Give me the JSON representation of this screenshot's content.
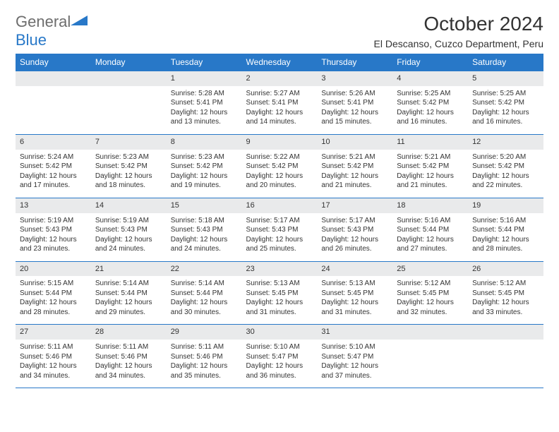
{
  "logo": {
    "general": "General",
    "blue": "Blue"
  },
  "header": {
    "title": "October 2024",
    "location": "El Descanso, Cuzco Department, Peru"
  },
  "colors": {
    "brand": "#2878c8",
    "dayhead_bg": "#e9eaeb",
    "text": "#333333",
    "logo_gray": "#6d6d6d"
  },
  "weekdays": [
    "Sunday",
    "Monday",
    "Tuesday",
    "Wednesday",
    "Thursday",
    "Friday",
    "Saturday"
  ],
  "weeks": [
    [
      null,
      null,
      {
        "n": "1",
        "sr": "Sunrise: 5:28 AM",
        "ss": "Sunset: 5:41 PM",
        "dl": "Daylight: 12 hours and 13 minutes."
      },
      {
        "n": "2",
        "sr": "Sunrise: 5:27 AM",
        "ss": "Sunset: 5:41 PM",
        "dl": "Daylight: 12 hours and 14 minutes."
      },
      {
        "n": "3",
        "sr": "Sunrise: 5:26 AM",
        "ss": "Sunset: 5:41 PM",
        "dl": "Daylight: 12 hours and 15 minutes."
      },
      {
        "n": "4",
        "sr": "Sunrise: 5:25 AM",
        "ss": "Sunset: 5:42 PM",
        "dl": "Daylight: 12 hours and 16 minutes."
      },
      {
        "n": "5",
        "sr": "Sunrise: 5:25 AM",
        "ss": "Sunset: 5:42 PM",
        "dl": "Daylight: 12 hours and 16 minutes."
      }
    ],
    [
      {
        "n": "6",
        "sr": "Sunrise: 5:24 AM",
        "ss": "Sunset: 5:42 PM",
        "dl": "Daylight: 12 hours and 17 minutes."
      },
      {
        "n": "7",
        "sr": "Sunrise: 5:23 AM",
        "ss": "Sunset: 5:42 PM",
        "dl": "Daylight: 12 hours and 18 minutes."
      },
      {
        "n": "8",
        "sr": "Sunrise: 5:23 AM",
        "ss": "Sunset: 5:42 PM",
        "dl": "Daylight: 12 hours and 19 minutes."
      },
      {
        "n": "9",
        "sr": "Sunrise: 5:22 AM",
        "ss": "Sunset: 5:42 PM",
        "dl": "Daylight: 12 hours and 20 minutes."
      },
      {
        "n": "10",
        "sr": "Sunrise: 5:21 AM",
        "ss": "Sunset: 5:42 PM",
        "dl": "Daylight: 12 hours and 21 minutes."
      },
      {
        "n": "11",
        "sr": "Sunrise: 5:21 AM",
        "ss": "Sunset: 5:42 PM",
        "dl": "Daylight: 12 hours and 21 minutes."
      },
      {
        "n": "12",
        "sr": "Sunrise: 5:20 AM",
        "ss": "Sunset: 5:42 PM",
        "dl": "Daylight: 12 hours and 22 minutes."
      }
    ],
    [
      {
        "n": "13",
        "sr": "Sunrise: 5:19 AM",
        "ss": "Sunset: 5:43 PM",
        "dl": "Daylight: 12 hours and 23 minutes."
      },
      {
        "n": "14",
        "sr": "Sunrise: 5:19 AM",
        "ss": "Sunset: 5:43 PM",
        "dl": "Daylight: 12 hours and 24 minutes."
      },
      {
        "n": "15",
        "sr": "Sunrise: 5:18 AM",
        "ss": "Sunset: 5:43 PM",
        "dl": "Daylight: 12 hours and 24 minutes."
      },
      {
        "n": "16",
        "sr": "Sunrise: 5:17 AM",
        "ss": "Sunset: 5:43 PM",
        "dl": "Daylight: 12 hours and 25 minutes."
      },
      {
        "n": "17",
        "sr": "Sunrise: 5:17 AM",
        "ss": "Sunset: 5:43 PM",
        "dl": "Daylight: 12 hours and 26 minutes."
      },
      {
        "n": "18",
        "sr": "Sunrise: 5:16 AM",
        "ss": "Sunset: 5:44 PM",
        "dl": "Daylight: 12 hours and 27 minutes."
      },
      {
        "n": "19",
        "sr": "Sunrise: 5:16 AM",
        "ss": "Sunset: 5:44 PM",
        "dl": "Daylight: 12 hours and 28 minutes."
      }
    ],
    [
      {
        "n": "20",
        "sr": "Sunrise: 5:15 AM",
        "ss": "Sunset: 5:44 PM",
        "dl": "Daylight: 12 hours and 28 minutes."
      },
      {
        "n": "21",
        "sr": "Sunrise: 5:14 AM",
        "ss": "Sunset: 5:44 PM",
        "dl": "Daylight: 12 hours and 29 minutes."
      },
      {
        "n": "22",
        "sr": "Sunrise: 5:14 AM",
        "ss": "Sunset: 5:44 PM",
        "dl": "Daylight: 12 hours and 30 minutes."
      },
      {
        "n": "23",
        "sr": "Sunrise: 5:13 AM",
        "ss": "Sunset: 5:45 PM",
        "dl": "Daylight: 12 hours and 31 minutes."
      },
      {
        "n": "24",
        "sr": "Sunrise: 5:13 AM",
        "ss": "Sunset: 5:45 PM",
        "dl": "Daylight: 12 hours and 31 minutes."
      },
      {
        "n": "25",
        "sr": "Sunrise: 5:12 AM",
        "ss": "Sunset: 5:45 PM",
        "dl": "Daylight: 12 hours and 32 minutes."
      },
      {
        "n": "26",
        "sr": "Sunrise: 5:12 AM",
        "ss": "Sunset: 5:45 PM",
        "dl": "Daylight: 12 hours and 33 minutes."
      }
    ],
    [
      {
        "n": "27",
        "sr": "Sunrise: 5:11 AM",
        "ss": "Sunset: 5:46 PM",
        "dl": "Daylight: 12 hours and 34 minutes."
      },
      {
        "n": "28",
        "sr": "Sunrise: 5:11 AM",
        "ss": "Sunset: 5:46 PM",
        "dl": "Daylight: 12 hours and 34 minutes."
      },
      {
        "n": "29",
        "sr": "Sunrise: 5:11 AM",
        "ss": "Sunset: 5:46 PM",
        "dl": "Daylight: 12 hours and 35 minutes."
      },
      {
        "n": "30",
        "sr": "Sunrise: 5:10 AM",
        "ss": "Sunset: 5:47 PM",
        "dl": "Daylight: 12 hours and 36 minutes."
      },
      {
        "n": "31",
        "sr": "Sunrise: 5:10 AM",
        "ss": "Sunset: 5:47 PM",
        "dl": "Daylight: 12 hours and 37 minutes."
      },
      null,
      null
    ]
  ]
}
